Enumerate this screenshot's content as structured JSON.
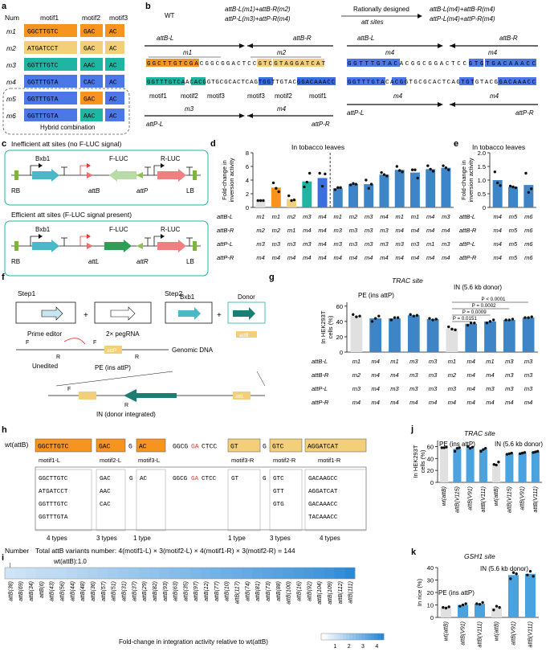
{
  "panel_letters": {
    "a": "a",
    "b": "b",
    "c": "c",
    "d": "d",
    "e": "e",
    "f": "f",
    "g": "g",
    "h": "h",
    "i": "i",
    "j": "j",
    "k": "k"
  },
  "colors": {
    "orange": "#f7941d",
    "yellow": "#f2cf78",
    "teal": "#1fb5a3",
    "blue": "#3a6fe0",
    "blue_box": "#4b78e6",
    "mid_blue": "#3d85c6",
    "light_blue": "#4aa3df",
    "grey": "#e0e0e0",
    "red": "#e53935"
  },
  "panel_a": {
    "headers": [
      "Num",
      "motif1",
      "motif2",
      "motif3"
    ],
    "rows": [
      {
        "num": "m1",
        "motif1": "GGCTTGTC",
        "motif2": "GAC",
        "motif3": "AC"
      },
      {
        "num": "m2",
        "motif1": "ATGATCCT",
        "motif2": "GAC",
        "motif3": "AC"
      },
      {
        "num": "m3",
        "motif1": "GGTTTGTC",
        "motif2": "AAC",
        "motif3": "AC"
      },
      {
        "num": "m4",
        "motif1": "GGTTTGTA",
        "motif2": "CAC",
        "motif3": "AC"
      },
      {
        "num": "m5",
        "motif1": "GGTTTGTA",
        "motif2": "GAC",
        "motif3": "AC"
      },
      {
        "num": "m6",
        "motif1": "GGTTTGTA",
        "motif2": "AAC",
        "motif3": "AC"
      }
    ],
    "hybrid_label": "Hybrid combination"
  },
  "panel_b": {
    "wt": "WT",
    "left_formula_1": "attB-L(m1)+attB-R(m2)",
    "left_formula_2": "attP-L(m3)+attP-R(m4)",
    "arrow_label_1": "Rationally designed",
    "arrow_label_2": "att sites",
    "right_formula_1": "attB-L(m4)+attB-R(m4)",
    "right_formula_2": "attP-L(m4)+attP-R(m4)",
    "attB_L": "attB-L",
    "attB_R": "attB-R",
    "attP_L": "attP-L",
    "attP_R": "attP-R",
    "m1": "m1",
    "m2": "m2",
    "m3": "m3",
    "m4": "m4",
    "seq_top_left": "GGCTTGTCGACGGCGGACTCCGTCGTAGGATCAT",
    "seq_bot_left": "GGTTTGTCAACACGGTGCGCACTCAGTGGTTGTACGGACAAACC",
    "seq_top_right": "GGTTTGTACACGGCGGACTCCGTGTGACAAACC",
    "seq_bot_right": "GGTTTGTACACGGTGCGCACTCAGTGTGTACGGACAAACC",
    "motif1": "motif1",
    "motif2": "motif2",
    "motif3": "motif3"
  },
  "panel_c": {
    "title_1": "Inefficient att sites (no F-LUC signal)",
    "title_2": "Efficient att sites (F-LUC signal present)",
    "bxb1": "Bxb1",
    "fluc": "F-LUC",
    "rluc": "R-LUC",
    "rb": "RB",
    "lb": "LB",
    "attB": "attB",
    "attP": "attP",
    "attL": "attL",
    "attR": "attR"
  },
  "panel_d": {
    "title": "In tobacco leaves",
    "ylabel_1": "Fold-change in",
    "ylabel_2": "inversion activity",
    "yticks": [
      "0",
      "2",
      "4",
      "6",
      "8"
    ],
    "row_labels": [
      "attB-L",
      "attB-R",
      "attP-L",
      "attP-R"
    ],
    "columns": [
      [
        "m1",
        "m2",
        "m3",
        "m4"
      ],
      [
        "m1",
        "m2",
        "m3",
        "m4"
      ],
      [
        "m2",
        "m1",
        "m3",
        "m4"
      ],
      [
        "m3",
        "m4",
        "m3",
        "m4"
      ],
      [
        "m4",
        "m4",
        "m4",
        "m4"
      ],
      [
        "m1",
        "m3",
        "m3",
        "m4"
      ],
      [
        "m2",
        "m3",
        "m3",
        "m4"
      ],
      [
        "m3",
        "m3",
        "m3",
        "m4"
      ],
      [
        "m4",
        "m3",
        "m3",
        "m4"
      ],
      [
        "m1",
        "m4",
        "m3",
        "m4"
      ],
      [
        "m1",
        "m4",
        "m3",
        "m4"
      ],
      [
        "m4",
        "m4",
        "m1",
        "m4"
      ],
      [
        "m3",
        "m4",
        "m3",
        "m4"
      ]
    ]
  },
  "panel_e": {
    "title": "In tobacco leaves",
    "ylabel_1": "Fold-change in",
    "ylabel_2": "inversion activity",
    "yticks": [
      "0",
      "0.5",
      "1.0",
      "1.5",
      "2.0"
    ],
    "row_labels": [
      "attB-L",
      "attB-R",
      "attP-L",
      "attP-R"
    ],
    "columns": [
      [
        "m4",
        "m4",
        "m4",
        "m4"
      ],
      [
        "m5",
        "m5",
        "m5",
        "m5"
      ],
      [
        "m6",
        "m6",
        "m6",
        "m6"
      ]
    ]
  },
  "panel_f": {
    "step1": "Step1",
    "step2": "Step2",
    "prime_editor": "Prime editor",
    "pegrna": "2× pegRNA",
    "bxb1": "Bxb1",
    "plus": "+",
    "donor": "Donor",
    "genomic": "Genomic DNA",
    "unedited": "Unedited",
    "pe": "PE (ins attP)",
    "in_label": "IN (donor integrated)",
    "F": "F",
    "R": "R",
    "attP": "attP",
    "attB": "attB",
    "attL": "attL"
  },
  "panel_g": {
    "title": "TRAC site",
    "ylabel_1": "In HEK293T",
    "ylabel_2": "cells (%)",
    "yticks": [
      "0",
      "20",
      "40",
      "60"
    ],
    "group1": "PE (ins attP)",
    "group2": "IN (5.6 kb donor)",
    "pvals": [
      "P < 0.0001",
      "P = 0.0002",
      "P = 0.0009",
      "P = 0.0151"
    ],
    "row_labels": [
      "attB-L",
      "attB-R",
      "attP-L",
      "attP-R"
    ],
    "columns": [
      [
        "m1",
        "m2",
        "m3",
        "m4"
      ],
      [
        "m4",
        "m4",
        "m4",
        "m4"
      ],
      [
        "m1",
        "m4",
        "m3",
        "m4"
      ],
      [
        "m3",
        "m3",
        "m3",
        "m4"
      ],
      [
        "m3",
        "m3",
        "m3",
        "m4"
      ],
      [
        "m1",
        "m2",
        "m3",
        "m4"
      ],
      [
        "m4",
        "m4",
        "m4",
        "m4"
      ],
      [
        "m1",
        "m4",
        "m3",
        "m4"
      ],
      [
        "m3",
        "m3",
        "m3",
        "m4"
      ],
      [
        "m3",
        "m3",
        "m3",
        "m4"
      ]
    ]
  },
  "panel_h": {
    "wt": "wt(attB)",
    "motif1L": "GGCTTGTC",
    "motif2L": "GAC",
    "g1": "G",
    "motif3L": "AC",
    "spacer_a": "GGCG",
    "spacer_ga": "GA",
    "spacer_b": "CTCC",
    "motif3R": "GT",
    "g2": "G",
    "motif2R": "GTC",
    "motif1R": "AGGATCAT",
    "lab_m1L": "motif1-L",
    "lab_m2L": "motif2-L",
    "lab_m3L": "motif3-L",
    "lab_m3R": "motif3-R",
    "lab_m2R": "motif2-R",
    "lab_m1R": "motif1-R",
    "m1L_variants": [
      "GGCTTGTC",
      "ATGATCCT",
      "GGTTTGTC",
      "GGTTTGTA"
    ],
    "m2L_variants": [
      "GAC",
      "AAC",
      "CAC"
    ],
    "m3L_variants": [
      "AC"
    ],
    "m3R_variants": [
      "GT"
    ],
    "m2R_variants": [
      "GTC",
      "GTT",
      "GTG"
    ],
    "m1R_variants": [
      "GACAAGCC",
      "AGGATCAT",
      "GACAAACC",
      "TACAAACC"
    ],
    "types": [
      "4 types",
      "3 types",
      "1 type",
      "1 type",
      "3 types",
      "4 types"
    ],
    "number_label": "Number",
    "total": "Total attB variants number: 4(motif1-L) × 3(motif2-L) × 4(motif1-R) × 3(motif2-R) = 144"
  },
  "panel_i": {
    "wt_label": "wt(attB):1.0",
    "labels": [
      "attB(38)",
      "attB(69)",
      "attB(34)",
      "attB(6)",
      "attB(43)",
      "attB(56)",
      "attB(44)",
      "attB(48)",
      "attB(36)",
      "attB(57)",
      "attB(51)",
      "attB(31)",
      "attB(37)",
      "attB(29)",
      "attB(82)",
      "attB(93)",
      "attB(63)",
      "attB(35)",
      "attB(97)",
      "attB(12)",
      "attB(77)",
      "attB(10)",
      "attB(117)",
      "attB(74)",
      "attB(81)",
      "attB(73)",
      "attB(88)",
      "attB(100)",
      "attB(16)",
      "attB(92)",
      "attB(104)",
      "attB(109)",
      "attB(112)",
      "attB(111)"
    ],
    "legend_title": "Fold-change in integration activity relative to wt(attB)",
    "legend_ticks": [
      "1",
      "2",
      "3",
      "4"
    ]
  },
  "panel_j": {
    "title": "TRAC site",
    "ylabel_1": "In HEK293T",
    "ylabel_2": "cells (%)",
    "yticks": [
      "0",
      "20",
      "40",
      "60"
    ],
    "group1": "PE (ins attP)",
    "group2": "IN (5.6 kb donor)",
    "categories": [
      "wt(attB)",
      "attB(V115)",
      "attB(V91)",
      "attB(V111)",
      "wt(attB)",
      "attB(V115)",
      "attB(V91)",
      "attB(V111)"
    ]
  },
  "panel_k": {
    "title": "GSH1 site",
    "ylabel_1": "In rice (%)",
    "yticks": [
      "0",
      "10",
      "20",
      "30",
      "40"
    ],
    "group1": "PE (ins attP)",
    "group2": "IN (5.6 kb donor)",
    "categories": [
      "wt(attB)",
      "attB(V91)",
      "attB(V111)",
      "wt(attB)",
      "attB(V91)",
      "attB(V111)"
    ]
  },
  "chart_data": [
    {
      "type": "bar",
      "panel": "d",
      "title": "In tobacco leaves",
      "ylabel": "Fold-change in inversion activity",
      "ylim": [
        0,
        8
      ],
      "categories": [
        "1",
        "2",
        "3",
        "4",
        "5",
        "6",
        "7",
        "8",
        "9",
        "10",
        "11",
        "12",
        "13"
      ],
      "values": [
        1.0,
        2.9,
        1.2,
        3.8,
        4.3,
        2.8,
        3.4,
        3.4,
        4.8,
        5.5,
        5.1,
        5.6,
        5.8
      ],
      "points": [
        [
          1,
          1,
          1
        ],
        [
          3.6,
          2.8,
          2.3
        ],
        [
          1.7,
          1.0,
          1.1
        ],
        [
          3.0,
          3.7,
          5.0
        ],
        [
          5.0,
          3.1,
          4.9
        ],
        [
          2.6,
          2.9,
          2.9
        ],
        [
          3.3,
          3.5,
          3.4
        ],
        [
          4.0,
          2.8,
          3.4
        ],
        [
          5.1,
          4.8,
          4.6
        ],
        [
          6.0,
          5.4,
          5.2
        ],
        [
          5.5,
          5.5,
          4.3
        ],
        [
          6.1,
          5.6,
          5.3
        ],
        [
          6.1,
          5.8,
          5.5
        ]
      ],
      "colors": [
        "#e0e0e0",
        "#f7941d",
        "#f2cf78",
        "#1fb5a3",
        "#3a6fe0",
        "#3d85c6",
        "#3d85c6",
        "#3d85c6",
        "#3d85c6",
        "#3d85c6",
        "#3d85c6",
        "#3d85c6",
        "#3d85c6"
      ]
    },
    {
      "type": "bar",
      "panel": "e",
      "title": "In tobacco leaves",
      "ylabel": "Fold-change in inversion activity",
      "ylim": [
        0,
        2
      ],
      "categories": [
        "m4",
        "m5",
        "m6"
      ],
      "values": [
        1.0,
        0.75,
        0.82
      ],
      "points": [
        [
          1.3,
          0.9,
          0.8
        ],
        [
          0.78,
          0.75,
          0.72
        ],
        [
          1.25,
          0.55,
          0.68
        ]
      ],
      "colors": [
        "#3d85c6",
        "#3d85c6",
        "#3d85c6"
      ]
    },
    {
      "type": "bar",
      "panel": "g",
      "title": "TRAC site",
      "ylabel": "In HEK293T cells (%)",
      "ylim": [
        0,
        65
      ],
      "categories": [
        "1",
        "2",
        "3",
        "4",
        "5",
        "6",
        "7",
        "8",
        "9",
        "10"
      ],
      "values": [
        47,
        44,
        44,
        48,
        43,
        31,
        37,
        40,
        42,
        45
      ],
      "points": [
        [
          49,
          46,
          47
        ],
        [
          40,
          44,
          47
        ],
        [
          42,
          45,
          45
        ],
        [
          49,
          47,
          48
        ],
        [
          44,
          42,
          43
        ],
        [
          33,
          30,
          29
        ],
        [
          35,
          38,
          38
        ],
        [
          38,
          40,
          42
        ],
        [
          42,
          42,
          43
        ],
        [
          45,
          45,
          46
        ]
      ],
      "colors": [
        "#e0e0e0",
        "#3d85c6",
        "#3d85c6",
        "#3d85c6",
        "#3d85c6",
        "#e0e0e0",
        "#3d85c6",
        "#3d85c6",
        "#3d85c6",
        "#3d85c6"
      ]
    },
    {
      "type": "bar",
      "panel": "j",
      "title": "TRAC site",
      "ylabel": "In HEK293T cells (%)",
      "ylim": [
        0,
        70
      ],
      "categories": [
        "wt(attB)",
        "attB(V115)",
        "attB(V91)",
        "attB(V111)",
        "wt(attB)",
        "attB(V115)",
        "attB(V91)",
        "attB(V111)"
      ],
      "values": [
        58,
        56,
        59,
        55,
        31,
        48,
        49,
        51
      ],
      "points": [
        [
          58,
          58,
          59
        ],
        [
          52,
          57,
          58
        ],
        [
          60,
          57,
          59
        ],
        [
          52,
          55,
          57
        ],
        [
          30,
          29,
          34
        ],
        [
          47,
          48,
          49
        ],
        [
          48,
          49,
          50
        ],
        [
          50,
          51,
          52
        ]
      ],
      "colors": [
        "#e0e0e0",
        "#4aa3df",
        "#4aa3df",
        "#4aa3df",
        "#e0e0e0",
        "#4aa3df",
        "#4aa3df",
        "#4aa3df"
      ]
    },
    {
      "type": "bar",
      "panel": "k",
      "title": "GSH1 site",
      "ylabel": "In rice (%)",
      "ylim": [
        0,
        40
      ],
      "categories": [
        "wt(attB)",
        "attB(V91)",
        "attB(V111)",
        "wt(attB)",
        "attB(V91)",
        "attB(V111)"
      ],
      "values": [
        8,
        10,
        11,
        8,
        34,
        35
      ],
      "points": [
        [
          8,
          7.5,
          8.5
        ],
        [
          9,
          10,
          11
        ],
        [
          11,
          10.5,
          12
        ],
        [
          6,
          9,
          8
        ],
        [
          31,
          36,
          35
        ],
        [
          34,
          37,
          33
        ]
      ],
      "colors": [
        "#e0e0e0",
        "#4aa3df",
        "#4aa3df",
        "#e0e0e0",
        "#4aa3df",
        "#4aa3df"
      ]
    },
    {
      "type": "heatmap",
      "panel": "i",
      "title": "",
      "legend": "Fold-change in integration activity relative to wt(attB)",
      "values": [
        1.0,
        1.1,
        1.2,
        1.3,
        1.35,
        1.4,
        1.5,
        1.6,
        1.7,
        1.8,
        1.9,
        2.0,
        2.1,
        2.2,
        2.3,
        2.4,
        2.5,
        2.6,
        2.7,
        2.8,
        2.9,
        3.0,
        3.1,
        3.2,
        3.3,
        3.4,
        3.5,
        3.6,
        3.7,
        3.8,
        3.9,
        4.0,
        4.2,
        4.4
      ],
      "range": [
        0,
        4.5
      ]
    }
  ]
}
